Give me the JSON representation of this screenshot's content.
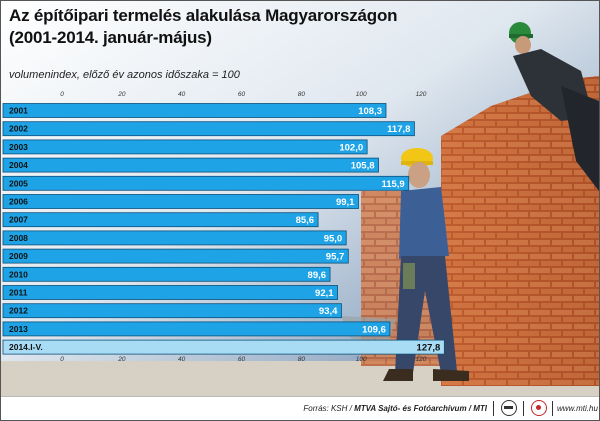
{
  "title_line1": "Az építőipari termelés alakulása Magyarországon",
  "title_line2": "(2001-2014. január-május)",
  "subtitle": "volumenindex, előző év azonos időszaka = 100",
  "footer": {
    "source_prefix": "Forrás: KSH / ",
    "source_bold": "MTVA Sajtó- és Fotóarchívum / MTI",
    "website": "www.mti.hu"
  },
  "colors": {
    "bar": "#1ea3e6",
    "bar_highlight": "#a7dcf4",
    "bar_border": "#0d4f78"
  },
  "chart_data": {
    "type": "bar",
    "orientation": "horizontal",
    "categories": [
      "2001",
      "2002",
      "2003",
      "2004",
      "2005",
      "2006",
      "2007",
      "2008",
      "2009",
      "2010",
      "2011",
      "2012",
      "2013",
      "2014.I-V."
    ],
    "values": [
      108.3,
      117.8,
      102.0,
      105.8,
      115.9,
      99.1,
      85.6,
      95.0,
      95.7,
      89.6,
      92.1,
      93.4,
      109.6,
      127.8
    ],
    "value_labels": [
      "108,3",
      "117,8",
      "102,0",
      "105,8",
      "115,9",
      "99,1",
      "85,6",
      "95,0",
      "95,7",
      "89,6",
      "92,1",
      "93,4",
      "109,6",
      "127,8"
    ],
    "xlim": [
      0,
      120
    ],
    "ticks": [
      0,
      20,
      40,
      60,
      80,
      100,
      120
    ],
    "tick_labels": [
      "0",
      "20",
      "40",
      "60",
      "80",
      "100",
      "120"
    ],
    "highlight_index": 13,
    "axis_position": "top and bottom",
    "grid": false
  }
}
